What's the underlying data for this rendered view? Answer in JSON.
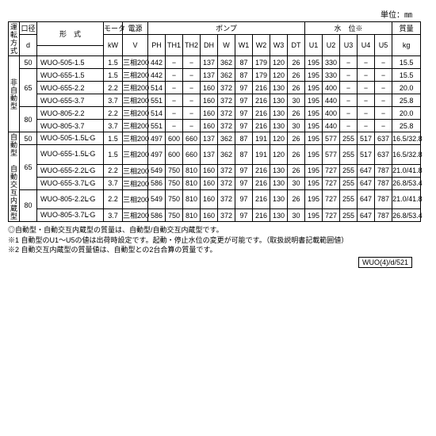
{
  "unit_label": "単位：㎜",
  "header": {
    "op": "運転方式",
    "bore": "口径",
    "bore_sub": "d",
    "model": "形　式",
    "motor": "モータ",
    "motor_sub": "kW",
    "power": "電源",
    "power_sub": "V",
    "pump": "ポンプ",
    "water": "水　位※",
    "weight": "質量",
    "weight_sub": "kg",
    "pump_cols": [
      "PH",
      "TH1",
      "TH2",
      "DH",
      "W",
      "W1",
      "W2",
      "W3",
      "DT"
    ],
    "water_cols": [
      "U1",
      "U2",
      "U3",
      "U4",
      "U5"
    ]
  },
  "groups": [
    {
      "op": "非自動型",
      "bores": [
        {
          "d": "50",
          "rows": [
            {
              "model": "WUO-505-1.5",
              "kw": "1.5",
              "v": "三相200",
              "c": [
                "442",
                "−",
                "−",
                "137",
                "362",
                "87",
                "179",
                "120",
                "26",
                "195",
                "330",
                "−",
                "−",
                "−",
                "15.5"
              ]
            }
          ]
        },
        {
          "d": "65",
          "rows": [
            {
              "model": "WUO-655-1.5",
              "kw": "1.5",
              "v": "三相200",
              "c": [
                "442",
                "−",
                "−",
                "137",
                "362",
                "87",
                "179",
                "120",
                "26",
                "195",
                "330",
                "−",
                "−",
                "−",
                "15.5"
              ]
            },
            {
              "model": "WUO-655-2.2",
              "kw": "2.2",
              "v": "三相200",
              "c": [
                "514",
                "−",
                "−",
                "160",
                "372",
                "97",
                "216",
                "130",
                "26",
                "195",
                "400",
                "−",
                "−",
                "−",
                "20.0"
              ]
            },
            {
              "model": "WUO-655-3.7",
              "kw": "3.7",
              "v": "三相200",
              "c": [
                "551",
                "−",
                "−",
                "160",
                "372",
                "97",
                "216",
                "130",
                "30",
                "195",
                "440",
                "−",
                "−",
                "−",
                "25.8"
              ]
            }
          ]
        },
        {
          "d": "80",
          "rows": [
            {
              "model": "WUO-805-2.2",
              "kw": "2.2",
              "v": "三相200",
              "c": [
                "514",
                "−",
                "−",
                "160",
                "372",
                "97",
                "216",
                "130",
                "26",
                "195",
                "400",
                "−",
                "−",
                "−",
                "20.0"
              ]
            },
            {
              "model": "WUO-805-3.7",
              "kw": "3.7",
              "v": "三相200",
              "c": [
                "551",
                "−",
                "−",
                "160",
                "372",
                "97",
                "216",
                "130",
                "30",
                "195",
                "440",
                "−",
                "−",
                "−",
                "25.8"
              ]
            }
          ]
        }
      ]
    },
    {
      "op": "自動型　自動交互内蔵型",
      "bores": [
        {
          "d": "50",
          "rows": [
            {
              "model": "WUO-505-1.5ᒷG",
              "kw": "1.5",
              "v": "三相200",
              "c": [
                "497",
                "600",
                "660",
                "137",
                "362",
                "87",
                "191",
                "120",
                "26",
                "195",
                "577",
                "255",
                "517",
                "637",
                "16.5/32.8"
              ]
            }
          ]
        },
        {
          "d": "65",
          "rows": [
            {
              "model": "WUO-655-1.5ᒷG",
              "kw": "1.5",
              "v": "三相200",
              "c": [
                "497",
                "600",
                "660",
                "137",
                "362",
                "87",
                "191",
                "120",
                "26",
                "195",
                "577",
                "255",
                "517",
                "637",
                "16.5/32.8"
              ]
            },
            {
              "model": "WUO-655-2.2ᒷG",
              "kw": "2.2",
              "v": "三相200",
              "c": [
                "549",
                "750",
                "810",
                "160",
                "372",
                "97",
                "216",
                "130",
                "26",
                "195",
                "727",
                "255",
                "647",
                "787",
                "21.0/41.8"
              ]
            },
            {
              "model": "WUO-655-3.7ᒷG",
              "kw": "3.7",
              "v": "三相200",
              "c": [
                "586",
                "750",
                "810",
                "160",
                "372",
                "97",
                "216",
                "130",
                "30",
                "195",
                "727",
                "255",
                "647",
                "787",
                "26.8/53.4"
              ]
            }
          ]
        },
        {
          "d": "80",
          "rows": [
            {
              "model": "WUO-805-2.2ᒷG",
              "kw": "2.2",
              "v": "三相200",
              "c": [
                "549",
                "750",
                "810",
                "160",
                "372",
                "97",
                "216",
                "130",
                "26",
                "195",
                "727",
                "255",
                "647",
                "787",
                "21.0/41.8"
              ]
            },
            {
              "model": "WUO-805-3.7ᒷG",
              "kw": "3.7",
              "v": "三相200",
              "c": [
                "586",
                "750",
                "810",
                "160",
                "372",
                "97",
                "216",
                "130",
                "30",
                "195",
                "727",
                "255",
                "647",
                "787",
                "26.8/53.4"
              ]
            }
          ]
        }
      ]
    }
  ],
  "notes": [
    "◎自動型・自動交互内蔵型の質量は、自動型/自動交互内蔵型です。",
    "※1 自動型のU1～U5の値は出荷時設定です。起動・停止水位の変更が可能です。（取扱説明書記載範囲値）",
    "※2 自動交互内蔵型の質量値は、自動型との2台合算の質量です。"
  ],
  "footer_code": "WUO(4)/d/521",
  "colw": {
    "op": 14,
    "bore": 22,
    "model": 84,
    "motor": 24,
    "power": 32,
    "pump": 22,
    "water": 22,
    "weight": 36
  }
}
